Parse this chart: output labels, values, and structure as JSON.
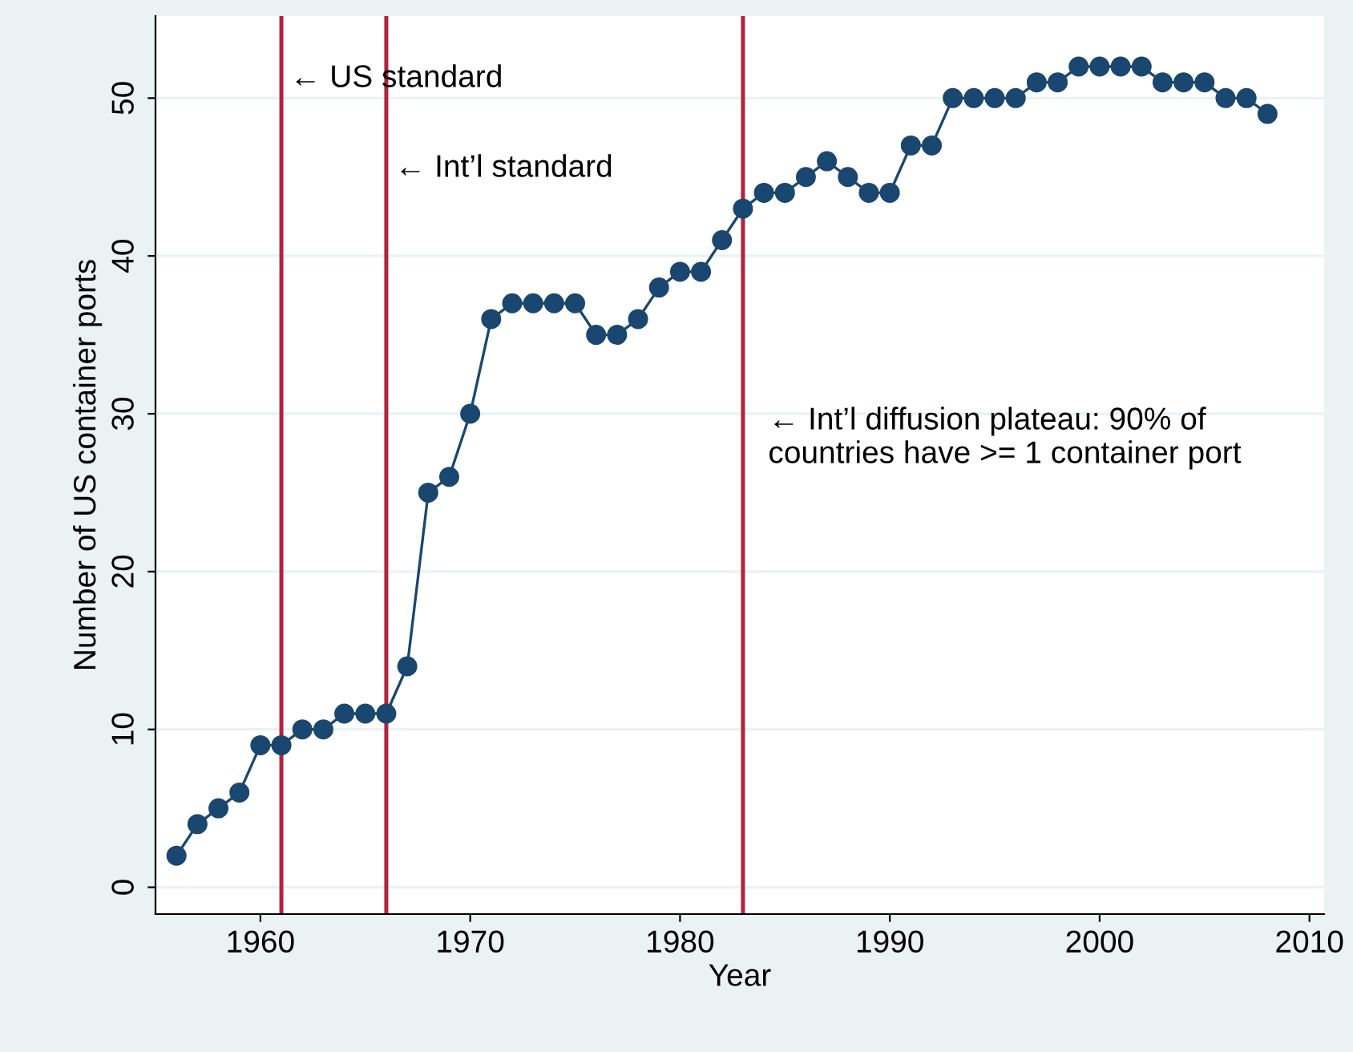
{
  "chart_data": {
    "type": "line",
    "xlabel": "Year",
    "ylabel": "Number of US container ports",
    "x": [
      1956,
      1957,
      1958,
      1959,
      1960,
      1961,
      1962,
      1963,
      1964,
      1965,
      1966,
      1967,
      1968,
      1969,
      1970,
      1971,
      1972,
      1973,
      1974,
      1975,
      1976,
      1977,
      1978,
      1979,
      1980,
      1981,
      1982,
      1983,
      1984,
      1985,
      1986,
      1987,
      1988,
      1989,
      1990,
      1991,
      1992,
      1993,
      1994,
      1995,
      1996,
      1997,
      1998,
      1999,
      2000,
      2001,
      2002,
      2003,
      2004,
      2005,
      2006,
      2007,
      2008
    ],
    "series": [
      {
        "color": "#1a476f",
        "values": [
          2,
          4,
          5,
          6,
          9,
          9,
          10,
          10,
          11,
          11,
          11,
          14,
          25,
          26,
          30,
          36,
          37,
          37,
          37,
          37,
          35,
          35,
          36,
          38,
          39,
          39,
          41,
          43,
          44,
          44,
          45,
          46,
          45,
          44,
          44,
          47,
          47,
          50,
          50,
          50,
          50,
          51,
          51,
          52,
          52,
          52,
          52,
          51,
          51,
          51,
          50,
          50,
          49
        ]
      }
    ],
    "marker": "circle",
    "line_style": "solid",
    "grid": "y",
    "annotations": [
      "← Int’l diffusion plateau: 90% of\ncountries have >= 1 container port"
    ],
    "xlim": [
      1955,
      2010.7
    ],
    "ylim": [
      -1.7,
      55.2
    ],
    "xticks": [
      1960,
      1970,
      1980,
      1990,
      2000,
      2010
    ],
    "yticks": [
      0,
      10,
      20,
      30,
      40,
      50
    ],
    "ref_lines": [
      {
        "axis": "x",
        "value": 1961,
        "label": "← US standard",
        "color": "#b0243c"
      },
      {
        "axis": "x",
        "value": 1966,
        "label": "← Int’l standard",
        "color": "#b0243c"
      },
      {
        "axis": "x",
        "value": 1983,
        "color": "#b0243c"
      }
    ]
  }
}
